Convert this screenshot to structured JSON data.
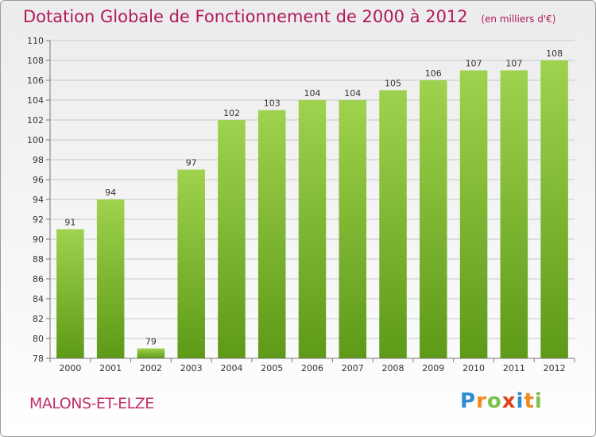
{
  "header": {
    "title": "Dotation Globale de Fonctionnement de 2000 à 2012",
    "subtitle": "(en milliers d'€)"
  },
  "footer": {
    "commune": "MALONS-ET-ELZE",
    "logo_letters": [
      "P",
      "r",
      "o",
      "x",
      "i",
      "t",
      "i"
    ],
    "logo_colors": [
      "#2d8bd4",
      "#f08a1c",
      "#7cc04a",
      "#e0421a",
      "#2d8bd4",
      "#f08a1c",
      "#7cc04a"
    ]
  },
  "chart_data": {
    "type": "bar",
    "categories": [
      "2000",
      "2001",
      "2002",
      "2003",
      "2004",
      "2005",
      "2006",
      "2007",
      "2008",
      "2009",
      "2010",
      "2011",
      "2012"
    ],
    "values": [
      91,
      94,
      79,
      97,
      102,
      103,
      104,
      104,
      105,
      106,
      107,
      107,
      108
    ],
    "data_labels": [
      "91",
      "94",
      "79",
      "97",
      "102",
      "103",
      "104",
      "104",
      "105",
      "106",
      "107",
      "107",
      "108"
    ],
    "ylim": [
      78,
      110
    ],
    "yticks": [
      "78",
      "80",
      "82",
      "84",
      "86",
      "88",
      "90",
      "92",
      "94",
      "96",
      "98",
      "100",
      "102",
      "104",
      "106",
      "108",
      "110"
    ],
    "grid": true,
    "bar_color_top": "#9fd24e",
    "bar_color_bottom": "#5d9a17"
  }
}
